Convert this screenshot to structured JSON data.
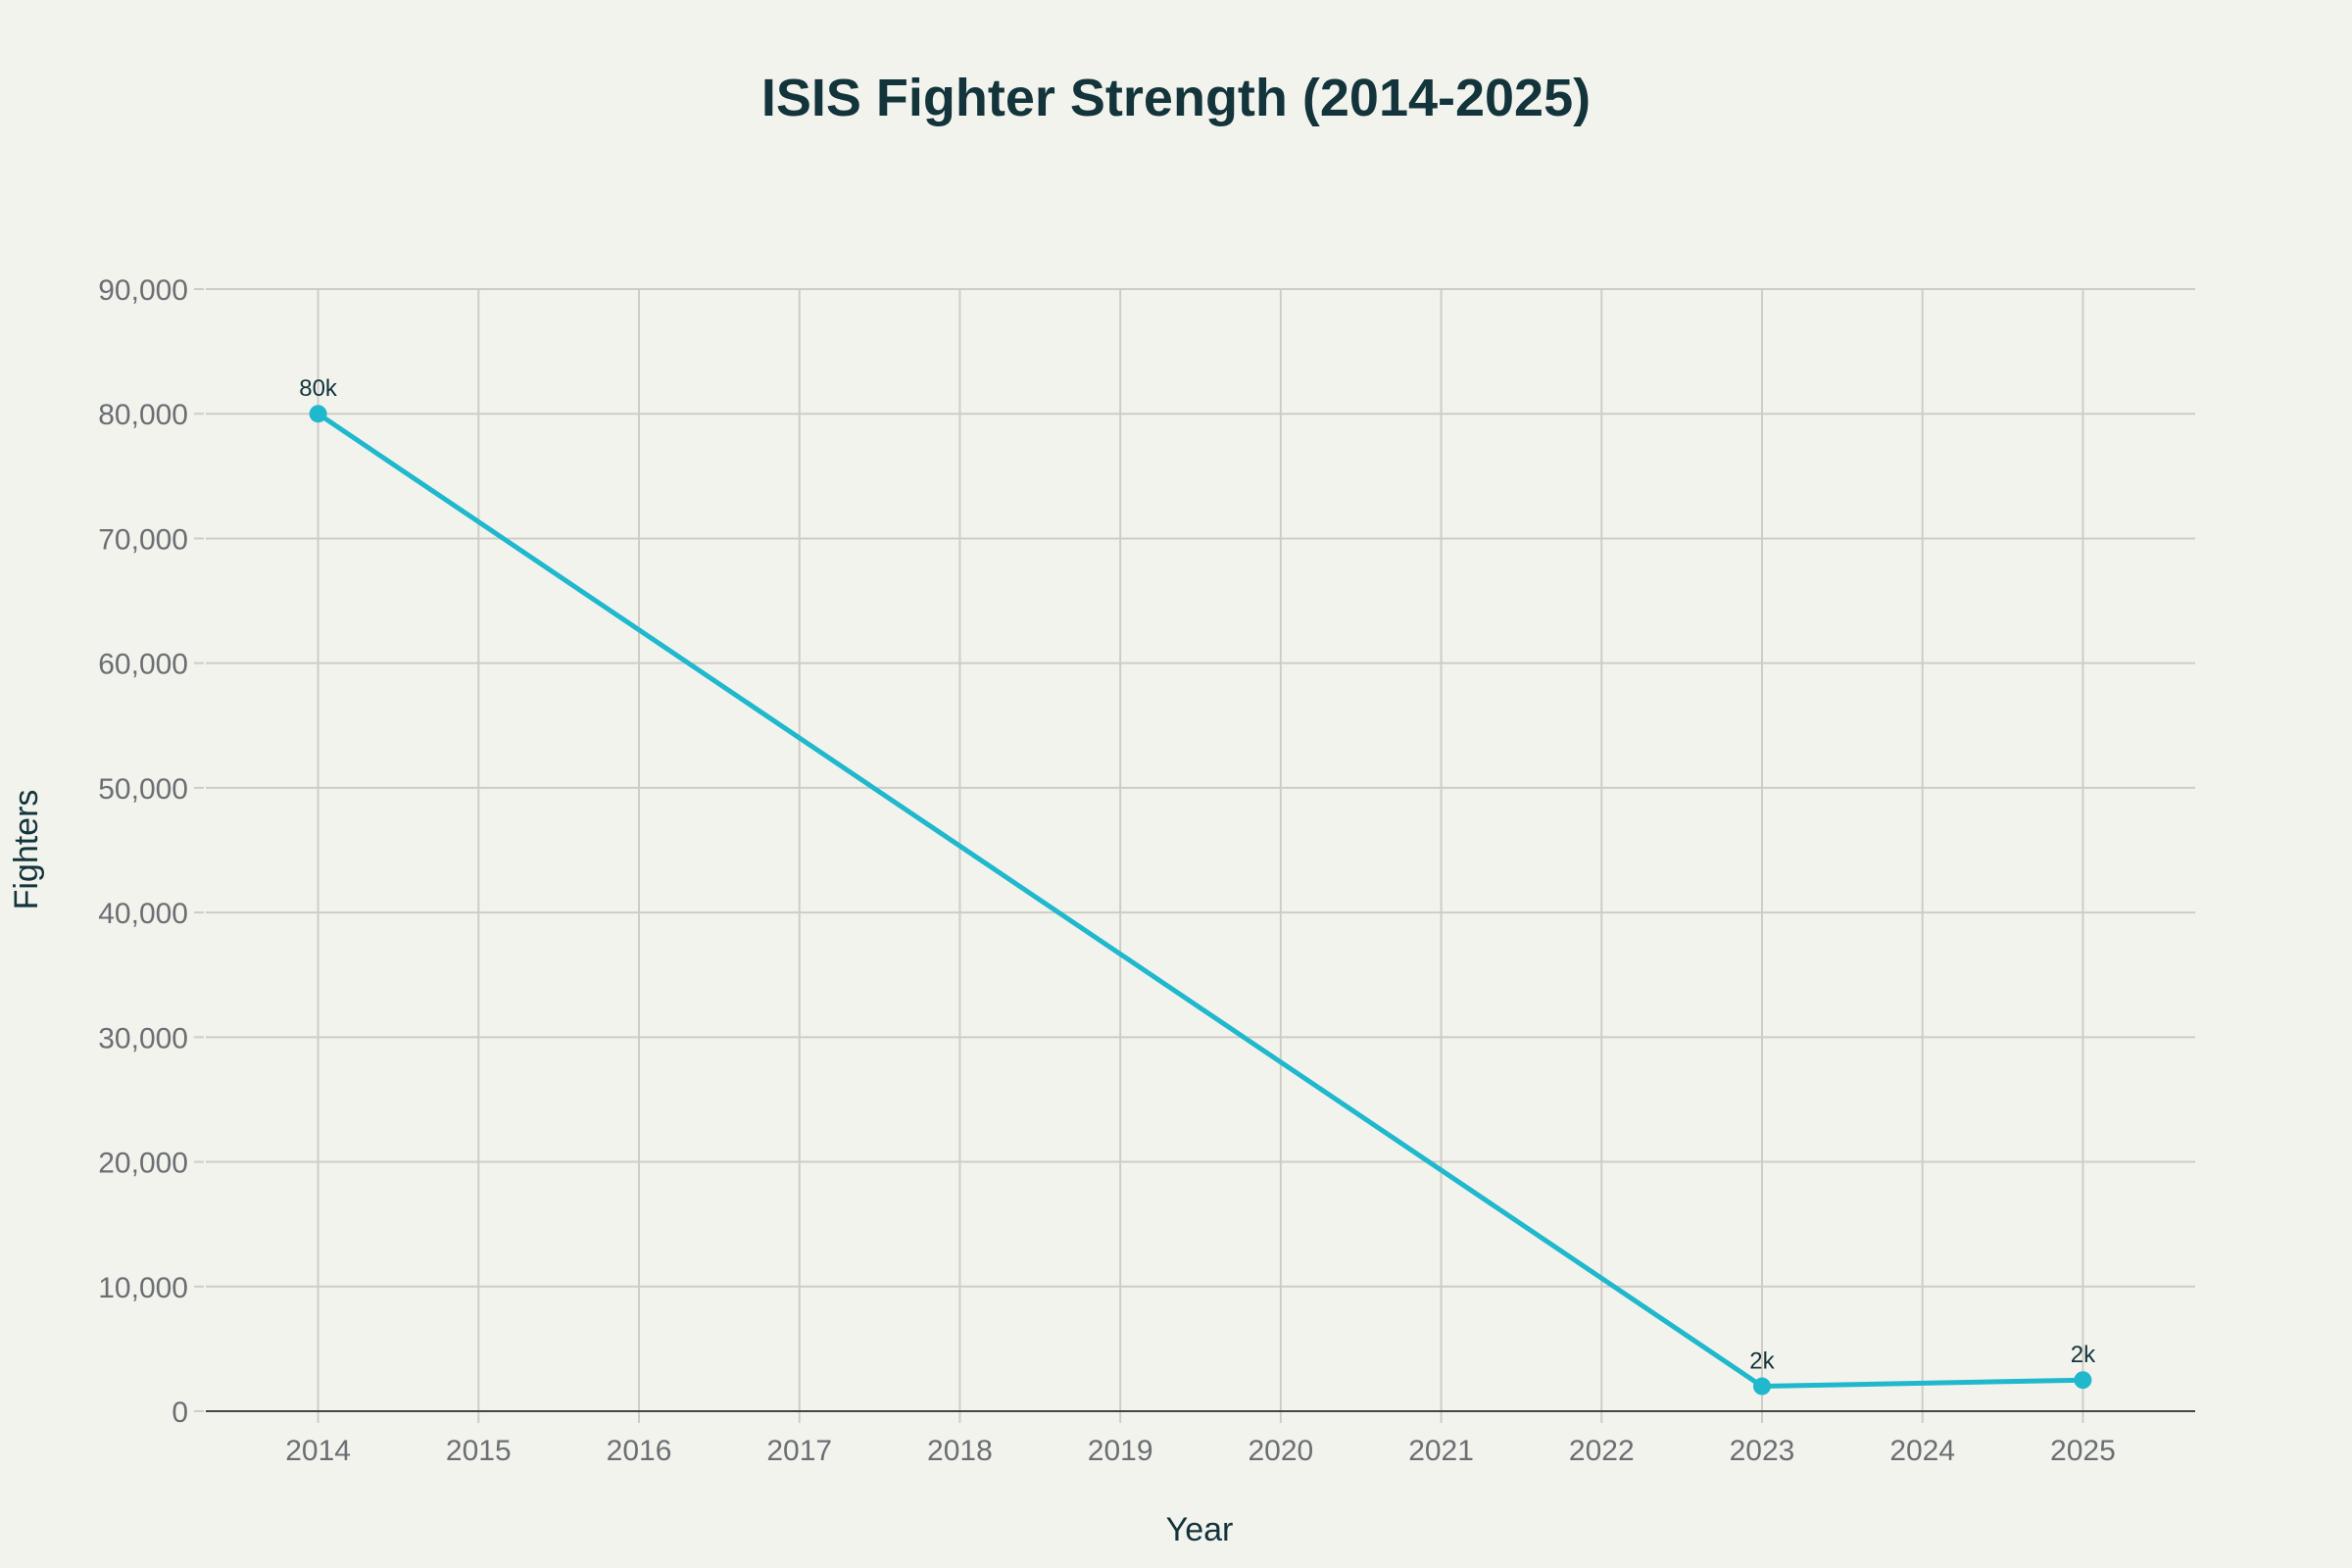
{
  "chart_data": {
    "type": "line",
    "title": "ISIS Fighter Strength (2014-2025)",
    "xlabel": "Year",
    "ylabel": "Fighters",
    "x": [
      2014,
      2023,
      2025
    ],
    "values": [
      80000,
      2000,
      2500
    ],
    "data_labels": [
      "80k",
      "2k",
      "2k"
    ],
    "xticks": [
      2014,
      2015,
      2016,
      2017,
      2018,
      2019,
      2020,
      2021,
      2022,
      2023,
      2024,
      2025
    ],
    "yticks": [
      0,
      10000,
      20000,
      30000,
      40000,
      50000,
      60000,
      70000,
      80000,
      90000
    ],
    "ytick_labels": [
      "0",
      "10,000",
      "20,000",
      "30,000",
      "40,000",
      "50,000",
      "60,000",
      "70,000",
      "80,000",
      "90,000"
    ],
    "xlim": [
      2013.3,
      2025.7
    ],
    "ylim": [
      0,
      90000
    ],
    "grid": true,
    "line_color": "#1fb8cd"
  }
}
